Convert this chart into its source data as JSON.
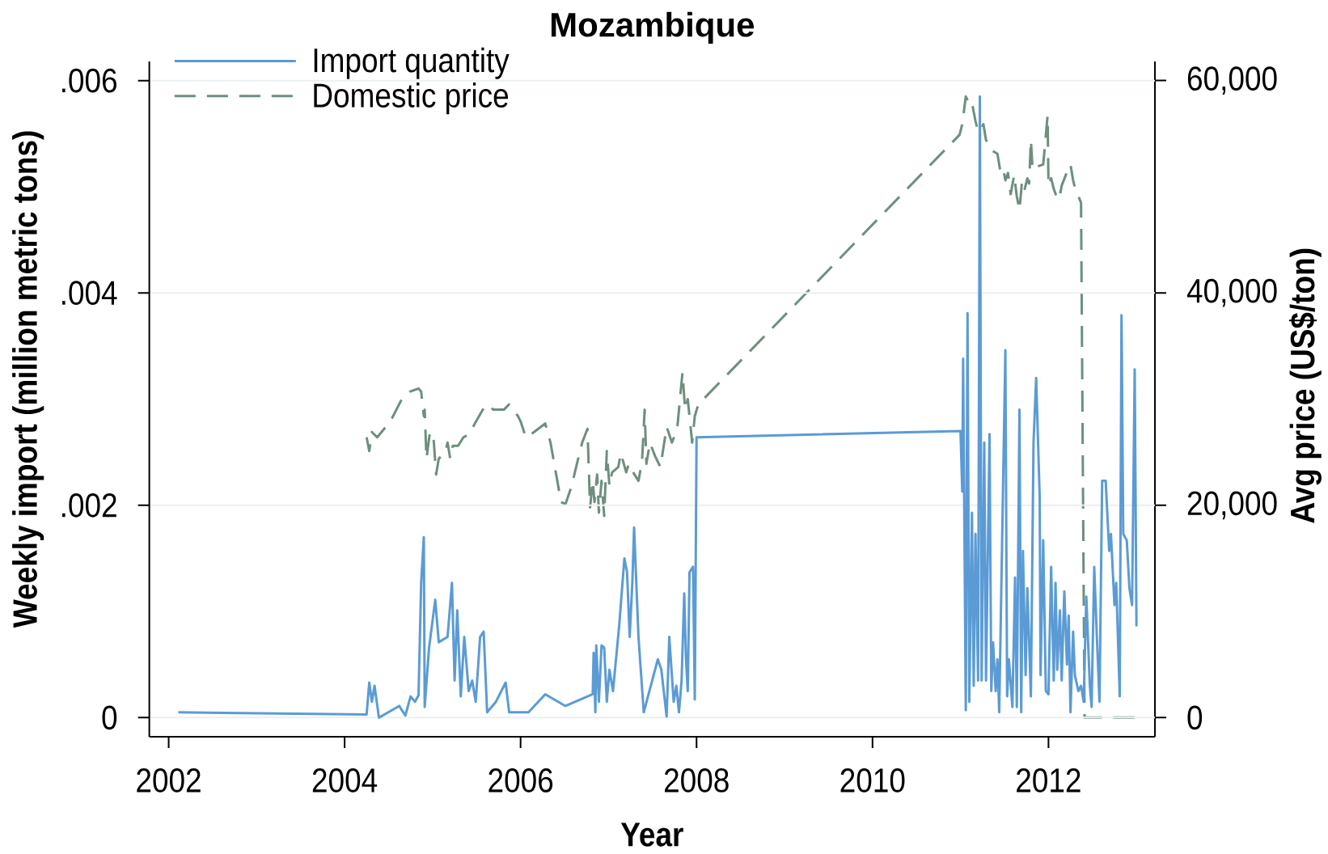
{
  "chart_data": {
    "type": "line",
    "title": "Mozambique",
    "xlabel": "Year",
    "ylabel": "Weekly import (million metric tons)",
    "y2label": "Avg price (US$/ton)",
    "xlim": [
      2001.78,
      2013.21
    ],
    "xticks": [
      2002,
      2004,
      2006,
      2008,
      2010,
      2012
    ],
    "ylim": [
      -0.00018,
      0.00618
    ],
    "yticks": [
      0,
      {
        "value": 0.002,
        "label": ".002"
      },
      {
        "value": 0.004,
        "label": ".004"
      },
      {
        "value": 0.006,
        "label": ".006"
      }
    ],
    "y2lim": [
      -1800,
      61800
    ],
    "y2ticks": [
      0,
      {
        "value": 20000,
        "label": "20,000"
      },
      {
        "value": 40000,
        "label": "40,000"
      },
      {
        "value": 60000,
        "label": "60,000"
      }
    ],
    "grid": "y",
    "legend": "top left",
    "series": [
      {
        "name": "Import quantity",
        "color": "#5b9bd5",
        "line_style": "solid",
        "x": [
          2002.11,
          2004.25,
          2004.28,
          2004.31,
          2004.34,
          2004.39,
          2004.62,
          2004.69,
          2004.75,
          2004.8,
          2004.84,
          2004.87,
          2004.9,
          2004.91,
          2004.96,
          2005.03,
          2005.07,
          2005.17,
          2005.22,
          2005.25,
          2005.28,
          2005.32,
          2005.36,
          2005.41,
          2005.45,
          2005.49,
          2005.54,
          2005.58,
          2005.62,
          2005.72,
          2005.83,
          2005.87,
          2006.09,
          2006.28,
          2006.51,
          2006.82,
          2006.83,
          2006.85,
          2006.86,
          2006.89,
          2006.92,
          2006.95,
          2006.98,
          2007.01,
          2007.05,
          2007.12,
          2007.18,
          2007.21,
          2007.24,
          2007.27,
          2007.29,
          2007.34,
          2007.4,
          2007.56,
          2007.6,
          2007.66,
          2007.69,
          2007.74,
          2007.77,
          2007.8,
          2007.83,
          2007.86,
          2007.88,
          2007.9,
          2007.92,
          2007.96,
          2007.98,
          2008.0,
          2011.0,
          2011.02,
          2011.03,
          2011.06,
          2011.08,
          2011.1,
          2011.13,
          2011.15,
          2011.17,
          2011.2,
          2011.22,
          2011.24,
          2011.27,
          2011.29,
          2011.33,
          2011.35,
          2011.37,
          2011.4,
          2011.42,
          2011.44,
          2011.51,
          2011.53,
          2011.55,
          2011.59,
          2011.62,
          2011.64,
          2011.67,
          2011.69,
          2011.71,
          2011.74,
          2011.76,
          2011.8,
          2011.83,
          2011.86,
          2011.9,
          2011.91,
          2011.94,
          2011.97,
          2012.0,
          2012.03,
          2012.06,
          2012.08,
          2012.1,
          2012.13,
          2012.15,
          2012.18,
          2012.21,
          2012.23,
          2012.25,
          2012.28,
          2012.3,
          2012.34,
          2012.37,
          2012.4,
          2012.43,
          2012.47,
          2012.49,
          2012.52,
          2012.55,
          2012.58,
          2012.61,
          2012.65,
          2012.69,
          2012.71,
          2012.75,
          2012.77,
          2012.81,
          2012.83,
          2012.85,
          2012.89,
          2012.92,
          2012.95,
          2012.98,
          2013.0
        ],
        "values": [
          5e-05,
          3e-05,
          0.00033,
          0.00015,
          0.0003,
          0,
          0.00011,
          2e-05,
          0.0002,
          0.00015,
          0.00021,
          0.00127,
          0.0017,
          0.0001,
          0.00066,
          0.00111,
          0.00071,
          0.00076,
          0.00127,
          0.00035,
          0.00101,
          0.0002,
          0.00076,
          0.00025,
          0.00035,
          0.00015,
          0.00076,
          0.00081,
          5e-05,
          0.00015,
          0.00033,
          5e-05,
          5e-05,
          0.00022,
          0.00011,
          0.00022,
          0.00061,
          5e-05,
          0.00068,
          0.00015,
          0.00068,
          0.00066,
          0.00015,
          0.00045,
          0.00025,
          0.00086,
          0.0015,
          0.00137,
          0.00076,
          0.00127,
          0.00179,
          0.00076,
          5e-05,
          0.00055,
          0.00045,
          1e-05,
          0.00076,
          0.00015,
          0.0003,
          5e-05,
          0.00035,
          0.00117,
          0.00055,
          0.00025,
          0.00137,
          0.00142,
          0.00017,
          0.00264,
          0.0027,
          0.00213,
          0.00338,
          7e-05,
          0.00381,
          0.00015,
          0.00193,
          0.0003,
          0.00173,
          0.00035,
          0.00585,
          0.00035,
          0.00259,
          0.00035,
          0.00267,
          0.00025,
          0.00071,
          0.00025,
          0.00055,
          5e-05,
          0.00346,
          0.0002,
          0.00055,
          0.0001,
          0.00132,
          0.0001,
          0.0029,
          5e-05,
          0.00157,
          0.0004,
          0.00122,
          0.0002,
          0.00259,
          0.0032,
          0.00208,
          0.0004,
          0.00167,
          0.00025,
          0.00022,
          0.00142,
          0.00035,
          0.00127,
          0.00045,
          0.00101,
          0.00035,
          0.00119,
          0.0005,
          0.00096,
          5e-05,
          0.00081,
          0.0004,
          0.00025,
          0.0003,
          0.00015,
          0.00114,
          0.0003,
          0.0001,
          0.00142,
          0.00076,
          0.00015,
          0.00223,
          0.00223,
          0.00157,
          0.00173,
          0.00106,
          0.00127,
          0.0002,
          0.00379,
          0.00173,
          0.00167,
          0.00122,
          0.00106,
          0.00328,
          0.00086
        ]
      },
      {
        "name": "Domestic price",
        "color": "#6d8f7e",
        "line_style": "dashed",
        "axis": "y2",
        "x": [
          2004.25,
          2004.28,
          2004.31,
          2004.37,
          2004.52,
          2004.65,
          2004.74,
          2004.84,
          2004.87,
          2004.9,
          2004.91,
          2004.93,
          2004.97,
          2005.01,
          2005.04,
          2005.07,
          2005.14,
          2005.17,
          2005.2,
          2005.23,
          2005.29,
          2005.35,
          2005.42,
          2005.48,
          2005.57,
          2005.63,
          2005.69,
          2005.81,
          2005.87,
          2005.97,
          2006.0,
          2006.06,
          2006.12,
          2006.28,
          2006.34,
          2006.46,
          2006.51,
          2006.58,
          2006.64,
          2006.7,
          2006.76,
          2006.79,
          2006.82,
          2006.84,
          2006.87,
          2006.89,
          2006.92,
          2006.95,
          2006.98,
          2007.01,
          2007.04,
          2007.11,
          2007.14,
          2007.2,
          2007.23,
          2007.28,
          2007.34,
          2007.38,
          2007.41,
          2007.43,
          2007.47,
          2007.53,
          2007.59,
          2007.66,
          2007.72,
          2007.78,
          2007.84,
          2007.87,
          2007.9,
          2007.95,
          2007.98,
          2008.02,
          2010.99,
          2011.02,
          2011.06,
          2011.09,
          2011.11,
          2011.14,
          2011.17,
          2011.2,
          2011.23,
          2011.26,
          2011.29,
          2011.33,
          2011.36,
          2011.42,
          2011.45,
          2011.48,
          2011.51,
          2011.54,
          2011.57,
          2011.61,
          2011.64,
          2011.67,
          2011.7,
          2011.73,
          2011.76,
          2011.78,
          2011.8,
          2011.82,
          2011.87,
          2011.94,
          2011.99,
          2012.0,
          2012.03,
          2012.06,
          2012.09,
          2012.12,
          2012.15,
          2012.22,
          2012.25,
          2012.28,
          2012.31,
          2012.34,
          2012.37,
          2012.41,
          2013.0
        ],
        "values": [
          26400,
          25100,
          26900,
          26400,
          27900,
          30000,
          30700,
          31000,
          30700,
          28400,
          29000,
          24400,
          26900,
          26400,
          22900,
          24400,
          24900,
          25900,
          24400,
          25600,
          25600,
          26400,
          26700,
          27700,
          29000,
          29500,
          29000,
          29000,
          29500,
          28400,
          27900,
          26400,
          26700,
          27700,
          25900,
          20300,
          20100,
          21800,
          23900,
          25900,
          27200,
          19800,
          22300,
          20300,
          22900,
          19300,
          22300,
          19000,
          25100,
          21800,
          23100,
          23600,
          24900,
          23100,
          23900,
          23100,
          22300,
          24100,
          29000,
          23900,
          25900,
          24600,
          23600,
          27400,
          25900,
          27200,
          32500,
          29000,
          30000,
          25900,
          28400,
          29500,
          54900,
          55900,
          58500,
          58000,
          58200,
          57500,
          56200,
          55200,
          55400,
          55900,
          54400,
          53900,
          53400,
          53100,
          51600,
          51900,
          50600,
          51300,
          49300,
          51100,
          49100,
          47800,
          50600,
          49800,
          50800,
          50300,
          54400,
          51600,
          51900,
          52100,
          56700,
          50100,
          50800,
          49800,
          49100,
          48800,
          50100,
          51600,
          52100,
          50600,
          49600,
          49100,
          48500,
          0,
          0
        ]
      }
    ]
  }
}
